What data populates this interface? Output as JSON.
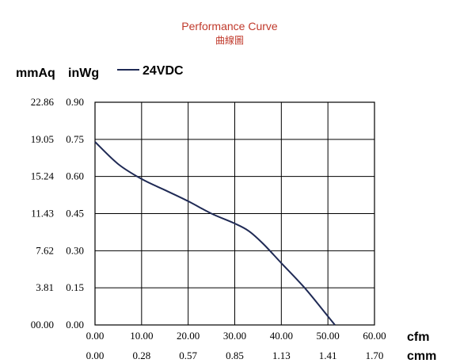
{
  "chart_data": {
    "type": "line",
    "title": "Performance Curve",
    "subtitle": "曲線圖",
    "ylabel_primary": "mmAq",
    "ylabel_secondary": "inWg",
    "xlabel_primary": "cfm",
    "xlabel_secondary": "cmm",
    "xlim": [
      0,
      60
    ],
    "ylim": [
      0,
      0.9
    ],
    "x_ticks": [
      "0.00",
      "10.00",
      "20.00",
      "30.00",
      "40.00",
      "50.00",
      "60.00"
    ],
    "x_ticks_secondary": [
      "0.00",
      "0.28",
      "0.57",
      "0.85",
      "1.13",
      "1.41",
      "1.70"
    ],
    "y_ticks": [
      "0.00",
      "0.15",
      "0.30",
      "0.45",
      "0.60",
      "0.75",
      "0.90"
    ],
    "y_ticks_secondary": [
      "00.00",
      "3.81",
      "7.62",
      "11.43",
      "15.24",
      "19.05",
      "22.86"
    ],
    "grid": true,
    "legend_position": "top-left",
    "series": [
      {
        "name": "24VDC",
        "color": "#1f2a55",
        "x": [
          0,
          5,
          10,
          15,
          20,
          25,
          30,
          33,
          36,
          40,
          45,
          50,
          51.5
        ],
        "y": [
          0.74,
          0.65,
          0.59,
          0.545,
          0.5,
          0.45,
          0.41,
          0.38,
          0.33,
          0.25,
          0.15,
          0.035,
          0
        ]
      }
    ]
  }
}
